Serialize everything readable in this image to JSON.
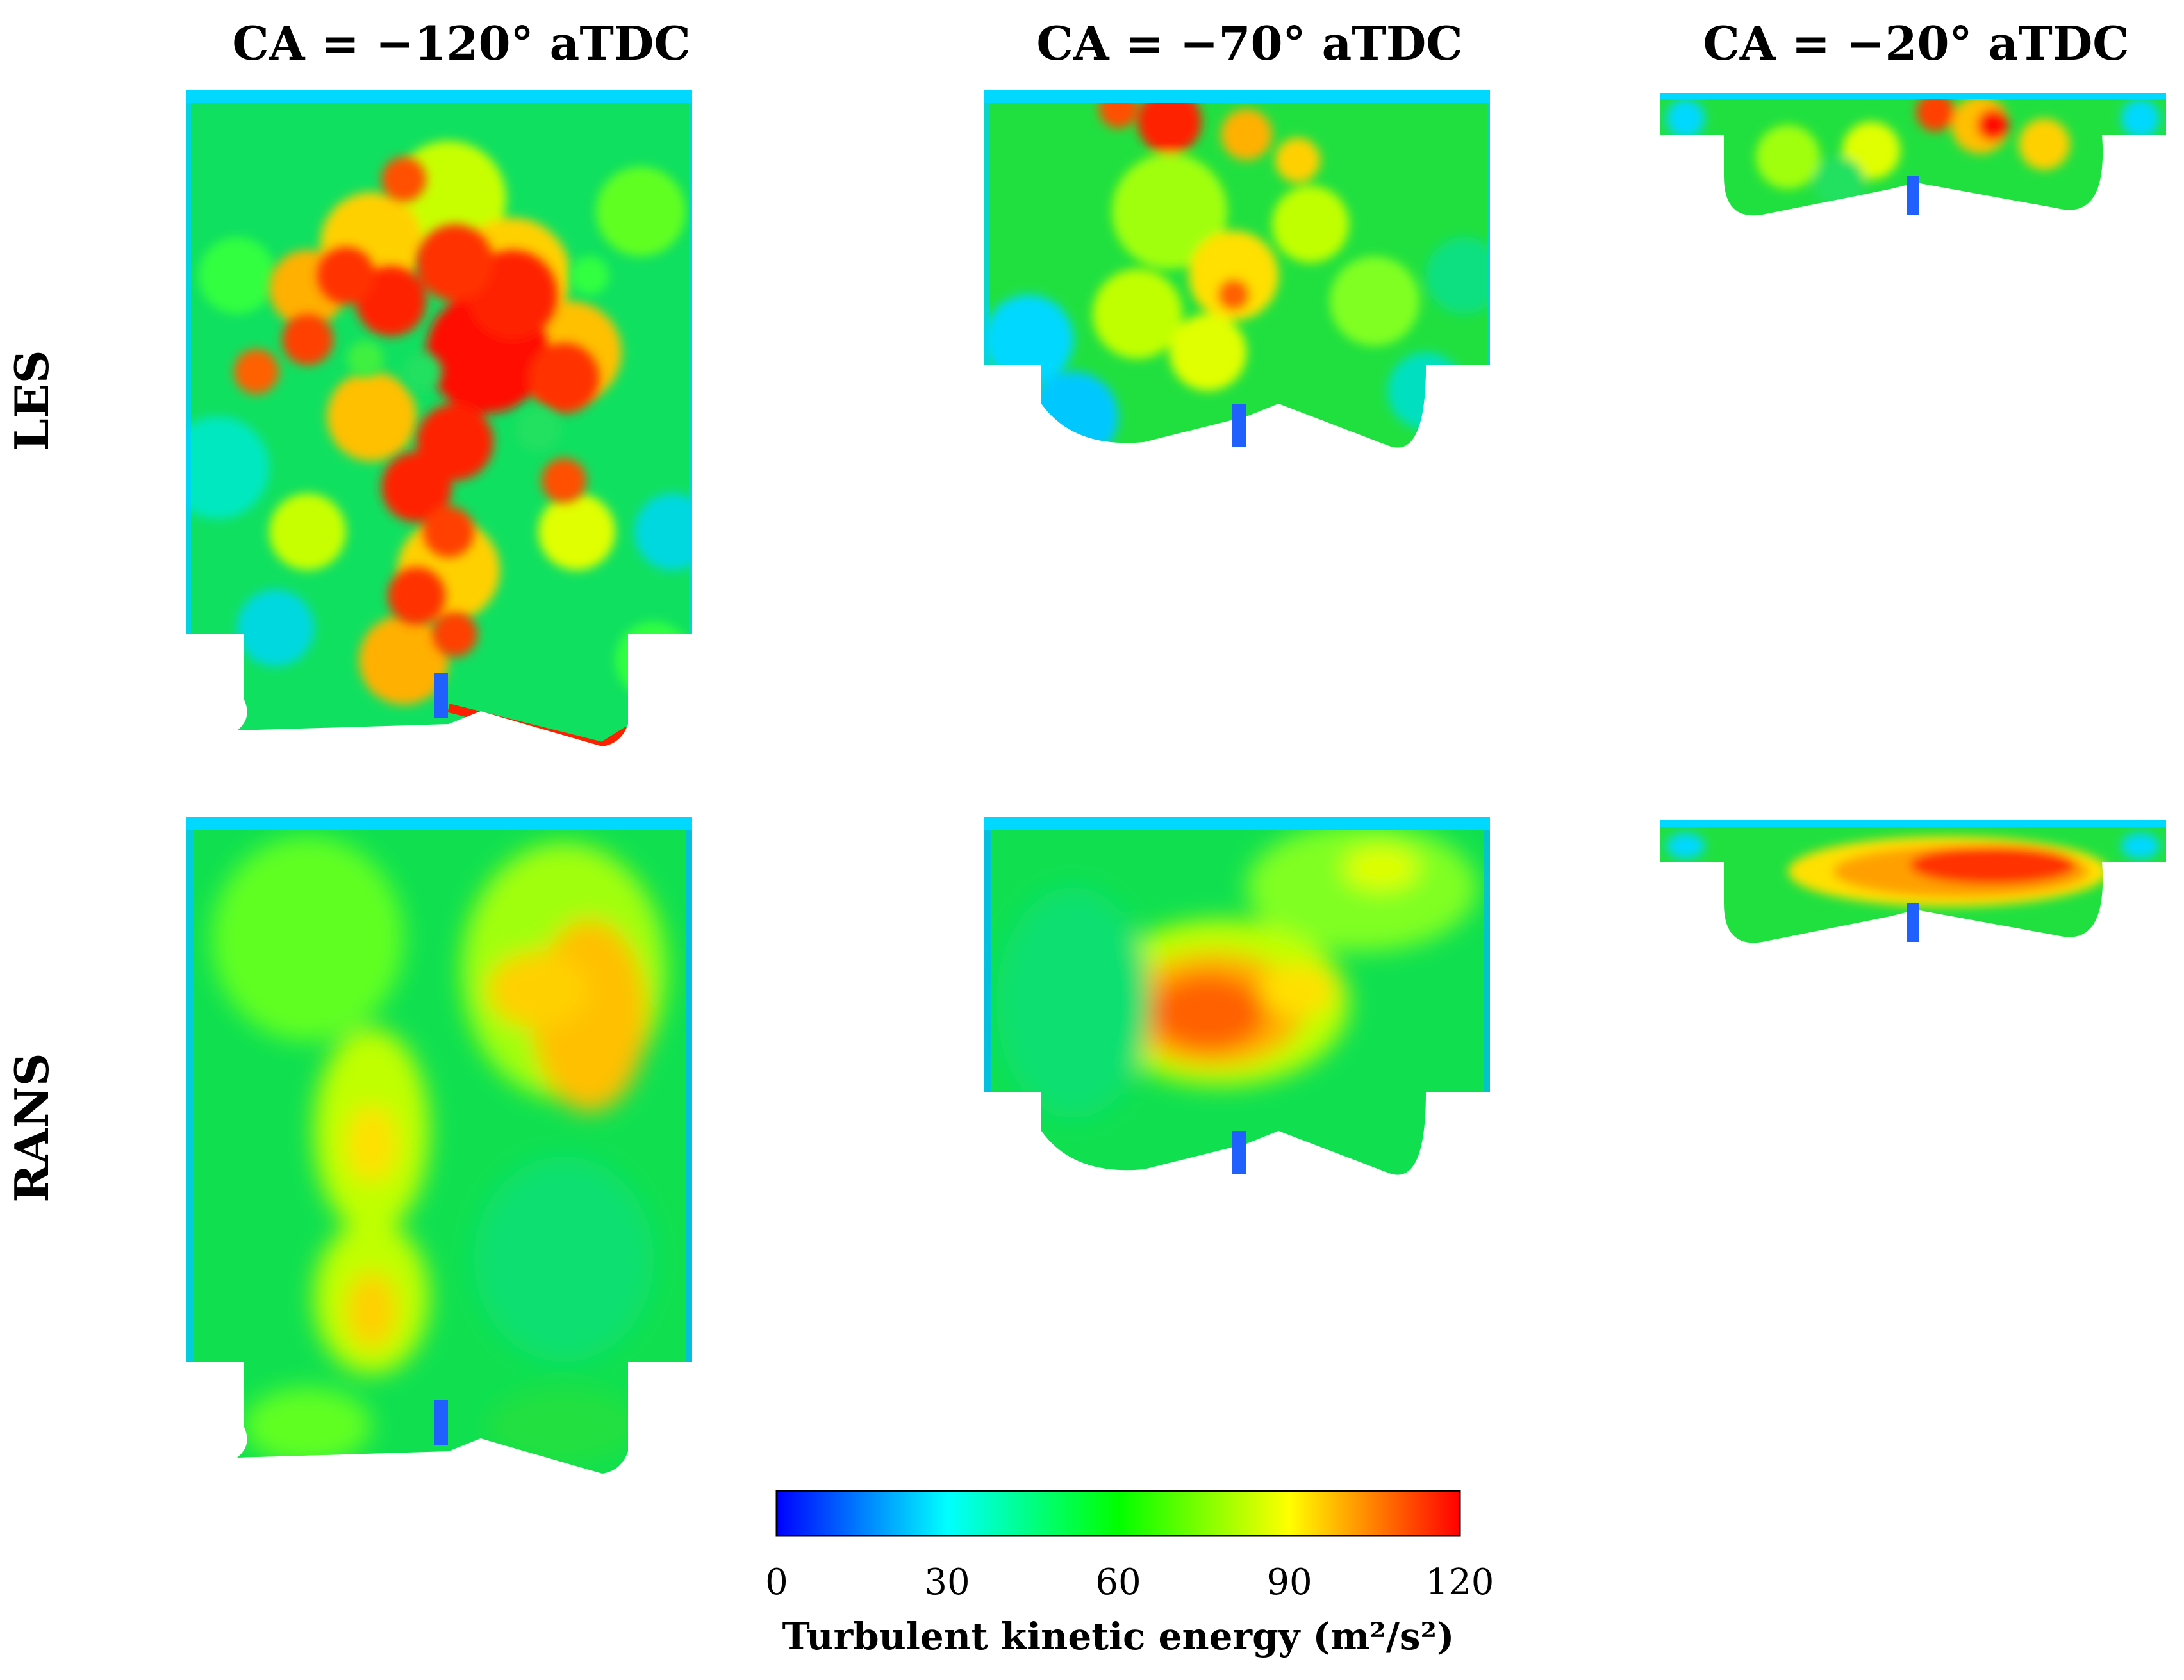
{
  "columns": [
    {
      "title": "CA = −120° aTDC"
    },
    {
      "title": "CA = −70° aTDC"
    },
    {
      "title": "CA = −20° aTDC"
    }
  ],
  "rows": [
    {
      "label": "LES"
    },
    {
      "label": "RANS"
    }
  ],
  "colorbar": {
    "label": "Turbulent kinetic energy (m²/s²)",
    "min": 0,
    "max": 120,
    "ticks": [
      "0",
      "30",
      "60",
      "90",
      "120"
    ],
    "colors": [
      "#0000ff",
      "#00ffff",
      "#00ff00",
      "#ffff00",
      "#ff0000"
    ]
  },
  "palette": {
    "blue": "#2050ff",
    "cyan": "#00e0ff",
    "green": "#00e040",
    "yellow": "#ffff00",
    "orange": "#ffa000",
    "red": "#ff0000"
  }
}
